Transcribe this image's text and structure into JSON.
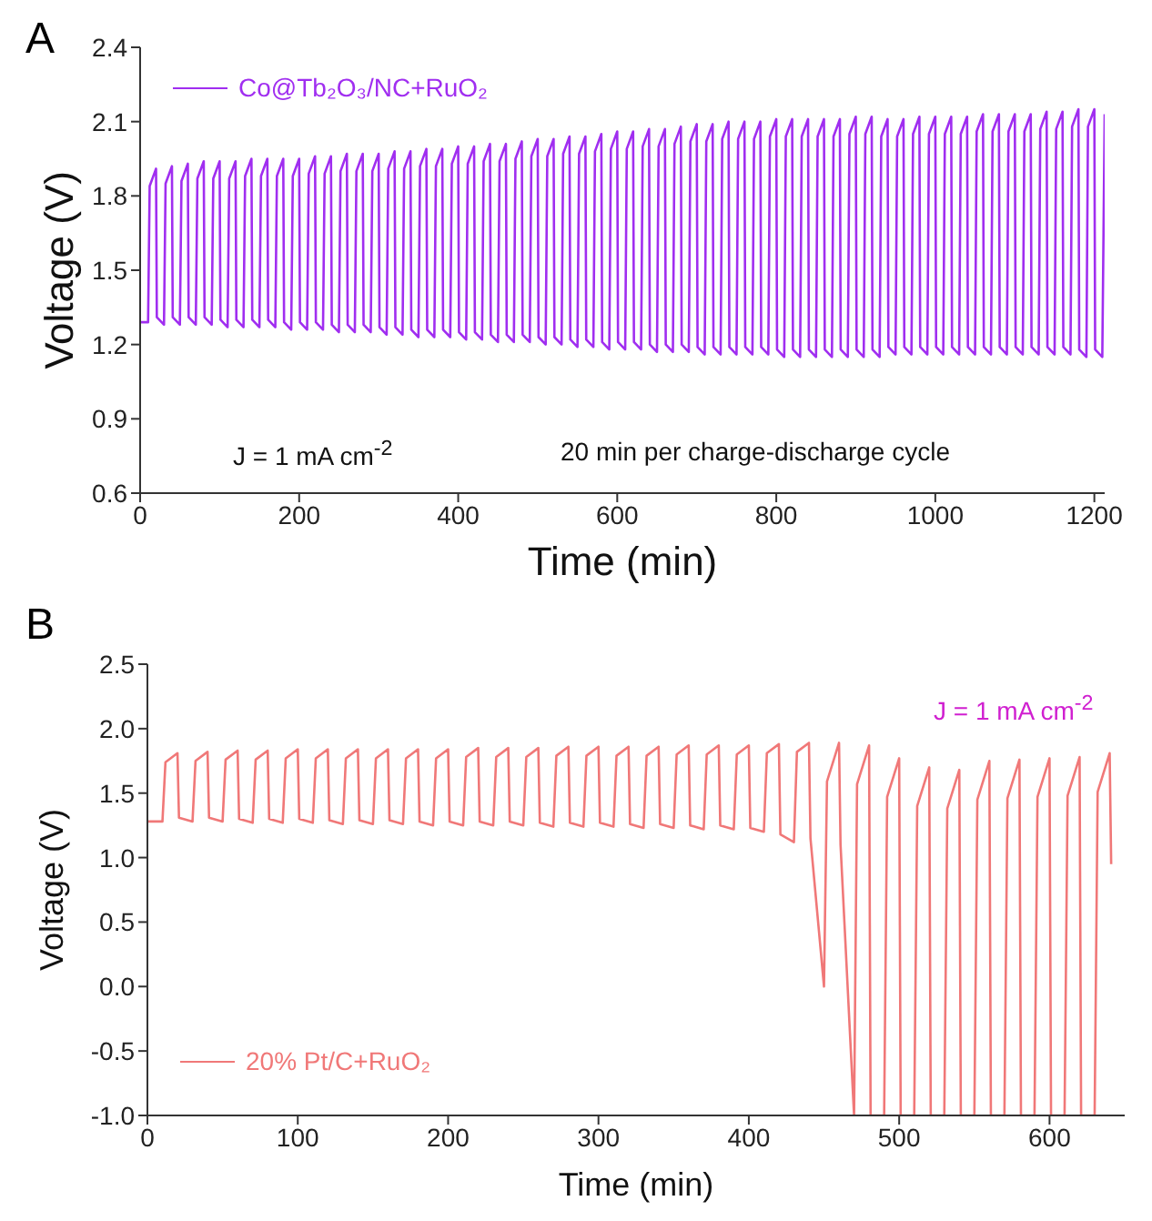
{
  "chart_data": [
    {
      "type": "line",
      "title": "A",
      "xlabel": "Time (min)",
      "ylabel": "Voltage (V)",
      "xlim": [
        0,
        1213
      ],
      "xticks": [
        0,
        200,
        400,
        600,
        800,
        1000,
        1200
      ],
      "ylim": [
        0.6,
        2.4
      ],
      "yticks": [
        0.6,
        0.9,
        1.2,
        1.5,
        1.8,
        2.1,
        2.4
      ],
      "legend": "top left",
      "annotations": [
        "J = 1 mA cm$^{-2}$",
        "20 min per charge-discharge cycle"
      ],
      "x": [
        0,
        10,
        12,
        20,
        21,
        30,
        32,
        40,
        41,
        50,
        52,
        60,
        61,
        70,
        72,
        80,
        81,
        90,
        92,
        100,
        101,
        110,
        112,
        120,
        121,
        130,
        132,
        140,
        141,
        150,
        152,
        160,
        161,
        170,
        172,
        180,
        181,
        190,
        192,
        200,
        201,
        210,
        212,
        220,
        221,
        230,
        232,
        240,
        241,
        250,
        252,
        260,
        261,
        270,
        272,
        280,
        281,
        290,
        292,
        300,
        301,
        310,
        312,
        320,
        321,
        330,
        332,
        340,
        341,
        350,
        352,
        360,
        361,
        370,
        372,
        380,
        381,
        390,
        392,
        400,
        401,
        410,
        412,
        420,
        421,
        430,
        432,
        440,
        441,
        450,
        452,
        460,
        461,
        470,
        472,
        480,
        481,
        490,
        492,
        500,
        501,
        510,
        512,
        520,
        521,
        530,
        532,
        540,
        541,
        550,
        552,
        560,
        561,
        570,
        572,
        580,
        581,
        590,
        592,
        600,
        601,
        610,
        612,
        620,
        621,
        630,
        632,
        640,
        641,
        650,
        652,
        660,
        661,
        670,
        672,
        680,
        681,
        690,
        692,
        700,
        701,
        710,
        712,
        720,
        721,
        730,
        732,
        740,
        741,
        750,
        752,
        760,
        761,
        770,
        772,
        780,
        781,
        790,
        792,
        800,
        801,
        810,
        812,
        820,
        821,
        830,
        832,
        840,
        841,
        850,
        852,
        860,
        861,
        870,
        872,
        880,
        881,
        890,
        892,
        900,
        901,
        910,
        912,
        920,
        921,
        930,
        932,
        940,
        941,
        950,
        952,
        960,
        961,
        970,
        972,
        980,
        981,
        990,
        992,
        1000,
        1001,
        1010,
        1012,
        1020,
        1021,
        1030,
        1032,
        1040,
        1041,
        1050,
        1052,
        1060,
        1061,
        1070,
        1072,
        1080,
        1081,
        1090,
        1092,
        1100,
        1101,
        1110,
        1112,
        1120,
        1121,
        1130,
        1132,
        1140,
        1141,
        1150,
        1152,
        1160,
        1161,
        1170,
        1172,
        1180,
        1181,
        1190,
        1192,
        1200,
        1201,
        1210,
        1213
      ],
      "series": [
        {
          "name": "Co@Tb₂O₃/NC+RuO₂",
          "color": "#a02ef0",
          "values": [
            1.29,
            1.29,
            1.84,
            1.91,
            1.31,
            1.28,
            1.85,
            1.92,
            1.31,
            1.28,
            1.86,
            1.93,
            1.31,
            1.28,
            1.87,
            1.94,
            1.31,
            1.28,
            1.87,
            1.94,
            1.3,
            1.27,
            1.87,
            1.94,
            1.3,
            1.27,
            1.88,
            1.95,
            1.3,
            1.27,
            1.88,
            1.95,
            1.3,
            1.27,
            1.88,
            1.95,
            1.29,
            1.26,
            1.88,
            1.95,
            1.29,
            1.26,
            1.89,
            1.96,
            1.29,
            1.26,
            1.89,
            1.96,
            1.28,
            1.25,
            1.9,
            1.97,
            1.28,
            1.25,
            1.9,
            1.97,
            1.28,
            1.25,
            1.9,
            1.97,
            1.27,
            1.24,
            1.91,
            1.98,
            1.27,
            1.24,
            1.91,
            1.98,
            1.26,
            1.23,
            1.92,
            1.99,
            1.26,
            1.23,
            1.92,
            1.99,
            1.26,
            1.23,
            1.93,
            2.0,
            1.25,
            1.22,
            1.93,
            2.0,
            1.25,
            1.22,
            1.94,
            2.01,
            1.24,
            1.21,
            1.94,
            2.01,
            1.24,
            1.21,
            1.95,
            2.02,
            1.24,
            1.21,
            1.96,
            2.03,
            1.23,
            1.2,
            1.96,
            2.03,
            1.23,
            1.2,
            1.97,
            2.04,
            1.22,
            1.19,
            1.97,
            2.04,
            1.22,
            1.19,
            1.98,
            2.05,
            1.21,
            1.18,
            1.99,
            2.06,
            1.21,
            1.18,
            1.99,
            2.06,
            1.21,
            1.18,
            2.0,
            2.07,
            1.2,
            1.17,
            2.0,
            2.07,
            1.2,
            1.17,
            2.01,
            2.08,
            1.2,
            1.17,
            2.02,
            2.09,
            1.19,
            1.16,
            2.02,
            2.09,
            1.19,
            1.16,
            2.03,
            2.1,
            1.19,
            1.16,
            2.03,
            2.1,
            1.19,
            1.16,
            2.03,
            2.1,
            1.19,
            1.16,
            2.04,
            2.11,
            1.18,
            1.15,
            2.04,
            2.11,
            1.18,
            1.15,
            2.04,
            2.11,
            1.18,
            1.15,
            2.04,
            2.11,
            1.18,
            1.15,
            2.04,
            2.11,
            1.18,
            1.15,
            2.05,
            2.12,
            1.18,
            1.15,
            2.05,
            2.12,
            1.18,
            1.15,
            2.04,
            2.11,
            1.19,
            1.16,
            2.04,
            2.11,
            1.19,
            1.16,
            2.05,
            2.12,
            1.19,
            1.16,
            2.05,
            2.12,
            1.19,
            1.16,
            2.05,
            2.12,
            1.19,
            1.16,
            2.05,
            2.12,
            1.19,
            1.16,
            2.06,
            2.13,
            1.19,
            1.16,
            2.06,
            2.13,
            1.19,
            1.16,
            2.06,
            2.13,
            1.19,
            1.16,
            2.06,
            2.13,
            1.19,
            1.16,
            2.07,
            2.14,
            1.19,
            1.16,
            2.07,
            2.14,
            1.19,
            1.16,
            2.08,
            2.15,
            1.18,
            1.15,
            2.08,
            2.15,
            1.18,
            1.15,
            2.13
          ]
        }
      ]
    },
    {
      "type": "line",
      "title": "B",
      "xlabel": "Time (min)",
      "ylabel": "Voltage (V)",
      "xlim": [
        0,
        650
      ],
      "xticks": [
        0,
        100,
        200,
        300,
        400,
        500,
        600
      ],
      "ylim": [
        -1,
        2.5
      ],
      "yticks": [
        {
          "value": -1,
          "label": "-1.0"
        },
        -0.5,
        {
          "value": 0,
          "label": "0.0"
        },
        0.5,
        {
          "value": 1,
          "label": "1.0"
        },
        1.5,
        {
          "value": 2,
          "label": "2.0"
        },
        2.5
      ],
      "legend": "bottom left",
      "annotations": [
        "J = 1 mA cm$^{-2}$"
      ],
      "x": [
        0,
        10,
        12,
        20,
        21,
        30,
        32,
        40,
        41,
        50,
        52,
        60,
        61,
        70,
        72,
        80,
        81,
        90,
        92,
        100,
        101,
        110,
        112,
        120,
        121,
        130,
        132,
        140,
        141,
        150,
        152,
        160,
        161,
        170,
        172,
        180,
        181,
        190,
        192,
        200,
        201,
        210,
        212,
        220,
        221,
        230,
        232,
        240,
        241,
        250,
        252,
        260,
        261,
        270,
        272,
        280,
        281,
        290,
        292,
        300,
        301,
        310,
        312,
        320,
        321,
        330,
        332,
        340,
        341,
        350,
        352,
        360,
        361,
        370,
        372,
        380,
        381,
        390,
        392,
        400,
        401,
        410,
        412,
        420,
        421,
        430,
        432,
        440,
        441,
        450,
        452,
        460,
        461,
        470,
        472,
        480,
        481,
        490,
        492,
        500,
        501,
        510,
        512,
        520,
        521,
        530,
        532,
        540,
        541,
        550,
        552,
        560,
        561,
        570,
        572,
        580,
        581,
        590,
        592,
        600,
        601,
        610,
        612,
        620,
        621,
        630,
        632,
        640,
        641
      ],
      "series": [
        {
          "name": "20% Pt/C+RuO₂",
          "color": "#f07878",
          "values": [
            1.28,
            1.28,
            1.74,
            1.81,
            1.31,
            1.28,
            1.75,
            1.82,
            1.31,
            1.28,
            1.76,
            1.83,
            1.3,
            1.27,
            1.76,
            1.83,
            1.3,
            1.27,
            1.77,
            1.84,
            1.3,
            1.27,
            1.77,
            1.84,
            1.29,
            1.26,
            1.77,
            1.84,
            1.29,
            1.26,
            1.77,
            1.84,
            1.29,
            1.26,
            1.77,
            1.84,
            1.28,
            1.25,
            1.77,
            1.84,
            1.28,
            1.25,
            1.78,
            1.85,
            1.28,
            1.25,
            1.78,
            1.85,
            1.28,
            1.25,
            1.78,
            1.85,
            1.27,
            1.24,
            1.79,
            1.86,
            1.27,
            1.24,
            1.79,
            1.86,
            1.27,
            1.24,
            1.79,
            1.86,
            1.26,
            1.23,
            1.79,
            1.86,
            1.26,
            1.23,
            1.8,
            1.87,
            1.25,
            1.22,
            1.8,
            1.87,
            1.25,
            1.22,
            1.8,
            1.87,
            1.23,
            1.2,
            1.81,
            1.88,
            1.18,
            1.12,
            1.82,
            1.89,
            1.15,
            0.0,
            1.59,
            1.89,
            1.1,
            -1.0,
            1.57,
            1.87,
            -1.0,
            -1.0,
            1.47,
            1.77,
            -1.0,
            -1.0,
            1.4,
            1.7,
            -1.0,
            -1.0,
            1.38,
            1.68,
            -1.0,
            -1.0,
            1.45,
            1.75,
            -1.0,
            -1.0,
            1.46,
            1.76,
            -1.0,
            -1.0,
            1.47,
            1.77,
            -1.0,
            -1.0,
            1.48,
            1.78,
            -1.0,
            -1.0,
            1.51,
            1.81,
            0.95
          ]
        }
      ]
    }
  ]
}
